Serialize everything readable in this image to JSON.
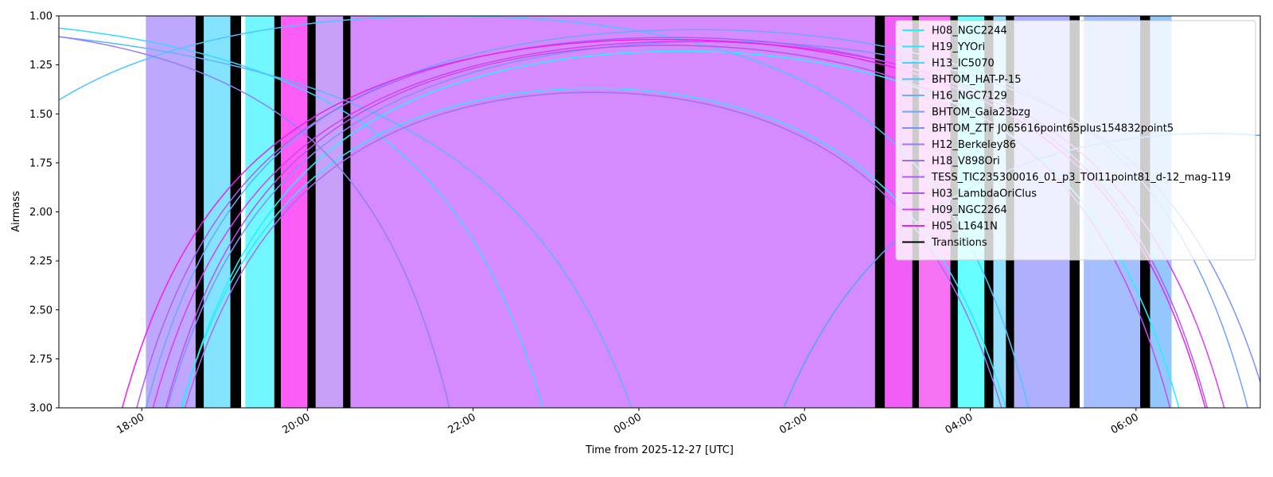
{
  "chart_data": {
    "type": "line",
    "title": "",
    "xlabel": "Time from 2025-12-27 [UTC]",
    "ylabel": "Airmass",
    "x_unit": "hours UTC relative to 2025-12-27 00:00",
    "xlim": [
      -7.0,
      7.5
    ],
    "ylim": [
      1.0,
      3.0
    ],
    "y_inverted": true,
    "grid": false,
    "legend_position": "top-right",
    "x_ticks": [
      {
        "value": -6,
        "label": "18:00"
      },
      {
        "value": -4,
        "label": "20:00"
      },
      {
        "value": -2,
        "label": "22:00"
      },
      {
        "value": 0,
        "label": "00:00"
      },
      {
        "value": 2,
        "label": "02:00"
      },
      {
        "value": 4,
        "label": "04:00"
      },
      {
        "value": 6,
        "label": "06:00"
      }
    ],
    "y_ticks": [
      {
        "value": 1.0,
        "label": "1.00"
      },
      {
        "value": 1.25,
        "label": "1.25"
      },
      {
        "value": 1.5,
        "label": "1.50"
      },
      {
        "value": 1.75,
        "label": "1.75"
      },
      {
        "value": 2.0,
        "label": "2.00"
      },
      {
        "value": 2.25,
        "label": "2.25"
      },
      {
        "value": 2.5,
        "label": "2.50"
      },
      {
        "value": 2.75,
        "label": "2.75"
      },
      {
        "value": 3.0,
        "label": "3.00"
      }
    ],
    "series": [
      {
        "name": "H08_NGC2244",
        "color": "#1ff5ff",
        "t0": 0.5,
        "amin": 1.18,
        "c": 0.0142
      },
      {
        "name": "H19_YYOri",
        "color": "#2ee6ff",
        "t0": -0.55,
        "amin": 1.37,
        "c": 0.016
      },
      {
        "name": "H13_IC5070",
        "color": "#3dd6ff",
        "t0": -8.9,
        "amin": 1.02,
        "c": 0.0108
      },
      {
        "name": "BHTOM_HAT-P-15",
        "color": "#4fc4ff",
        "t0": -2.3,
        "amin": 1.0,
        "c": 0.0136
      },
      {
        "name": "H16_NGC7129",
        "color": "#5fb4ff",
        "t0": -9.7,
        "amin": 1.05,
        "c": 0.0067
      },
      {
        "name": "BHTOM_Gaia23bzg",
        "color": "#6fa4ff",
        "t0": 0.7,
        "amin": 1.07,
        "c": 0.0136
      },
      {
        "name": "BHTOM_ZTF J065616point65plus154832point5",
        "color": "#8090ff",
        "t0": 0.95,
        "amin": 1.13,
        "c": 0.0125
      },
      {
        "name": "H12_Berkeley86",
        "color": "#907ffa",
        "t0": -8.6,
        "amin": 1.06,
        "c": 0.0153
      },
      {
        "name": "H18_V898Ori",
        "color": "#a06ef5",
        "t0": -0.55,
        "amin": 1.39,
        "c": 0.0159
      },
      {
        "name": "TESS_TIC235300016_01_p3_TOI11point81_d-12_mag-119",
        "color": "#b05ef2",
        "t0": 0.4,
        "amin": 1.11,
        "c": 0.0136
      },
      {
        "name": "H03_LambdaOriClus",
        "color": "#c04fef",
        "t0": 0.35,
        "amin": 1.15,
        "c": 0.0146
      },
      {
        "name": "H09_NGC2264",
        "color": "#d83ef5",
        "t0": 0.6,
        "amin": 1.13,
        "c": 0.0132
      },
      {
        "name": "H05_L1641N",
        "color": "#ee1ff5",
        "t0": 0.3,
        "amin": 1.12,
        "c": 0.0131
      }
    ],
    "extra_curve": {
      "name": "",
      "color": "#4fa6f5",
      "t0": 6.9,
      "amin": 1.6,
      "c": 0.011
    },
    "transitions_legend": {
      "name": "Transitions",
      "color": "#000000"
    },
    "observation_blocks": [
      {
        "start": -5.95,
        "end": -5.35,
        "color": "#bea8fe"
      },
      {
        "start": -5.35,
        "end": -5.25,
        "color": "#000000"
      },
      {
        "start": -5.25,
        "end": -4.93,
        "color": "#84e4ff"
      },
      {
        "start": -4.93,
        "end": -4.8,
        "color": "#000000"
      },
      {
        "start": -4.8,
        "end": -4.75,
        "color": "#ffffff"
      },
      {
        "start": -4.75,
        "end": -4.4,
        "color": "#72f6ff"
      },
      {
        "start": -4.4,
        "end": -4.32,
        "color": "#000000"
      },
      {
        "start": -4.32,
        "end": -4.0,
        "color": "#fb5df6"
      },
      {
        "start": -4.0,
        "end": -3.9,
        "color": "#000000"
      },
      {
        "start": -3.9,
        "end": -3.57,
        "color": "#c8a0fa"
      },
      {
        "start": -3.57,
        "end": -3.48,
        "color": "#000000"
      },
      {
        "start": -3.48,
        "end": 2.85,
        "color": "#d58bfd"
      },
      {
        "start": 2.85,
        "end": 2.97,
        "color": "#000000"
      },
      {
        "start": 2.97,
        "end": 3.3,
        "color": "#f15df6"
      },
      {
        "start": 3.3,
        "end": 3.38,
        "color": "#000000"
      },
      {
        "start": 3.38,
        "end": 3.76,
        "color": "#f772f3"
      },
      {
        "start": 3.76,
        "end": 3.85,
        "color": "#000000"
      },
      {
        "start": 3.85,
        "end": 4.17,
        "color": "#66fefe"
      },
      {
        "start": 4.17,
        "end": 4.28,
        "color": "#000000"
      },
      {
        "start": 4.28,
        "end": 4.43,
        "color": "#93dffe"
      },
      {
        "start": 4.43,
        "end": 4.53,
        "color": "#000000"
      },
      {
        "start": 4.53,
        "end": 5.2,
        "color": "#aeb0fe"
      },
      {
        "start": 5.2,
        "end": 5.32,
        "color": "#000000"
      },
      {
        "start": 5.32,
        "end": 5.37,
        "color": "#ffffff"
      },
      {
        "start": 5.37,
        "end": 6.05,
        "color": "#a4befe"
      },
      {
        "start": 6.05,
        "end": 6.17,
        "color": "#000000"
      },
      {
        "start": 6.17,
        "end": 6.43,
        "color": "#93c7fe"
      }
    ]
  }
}
